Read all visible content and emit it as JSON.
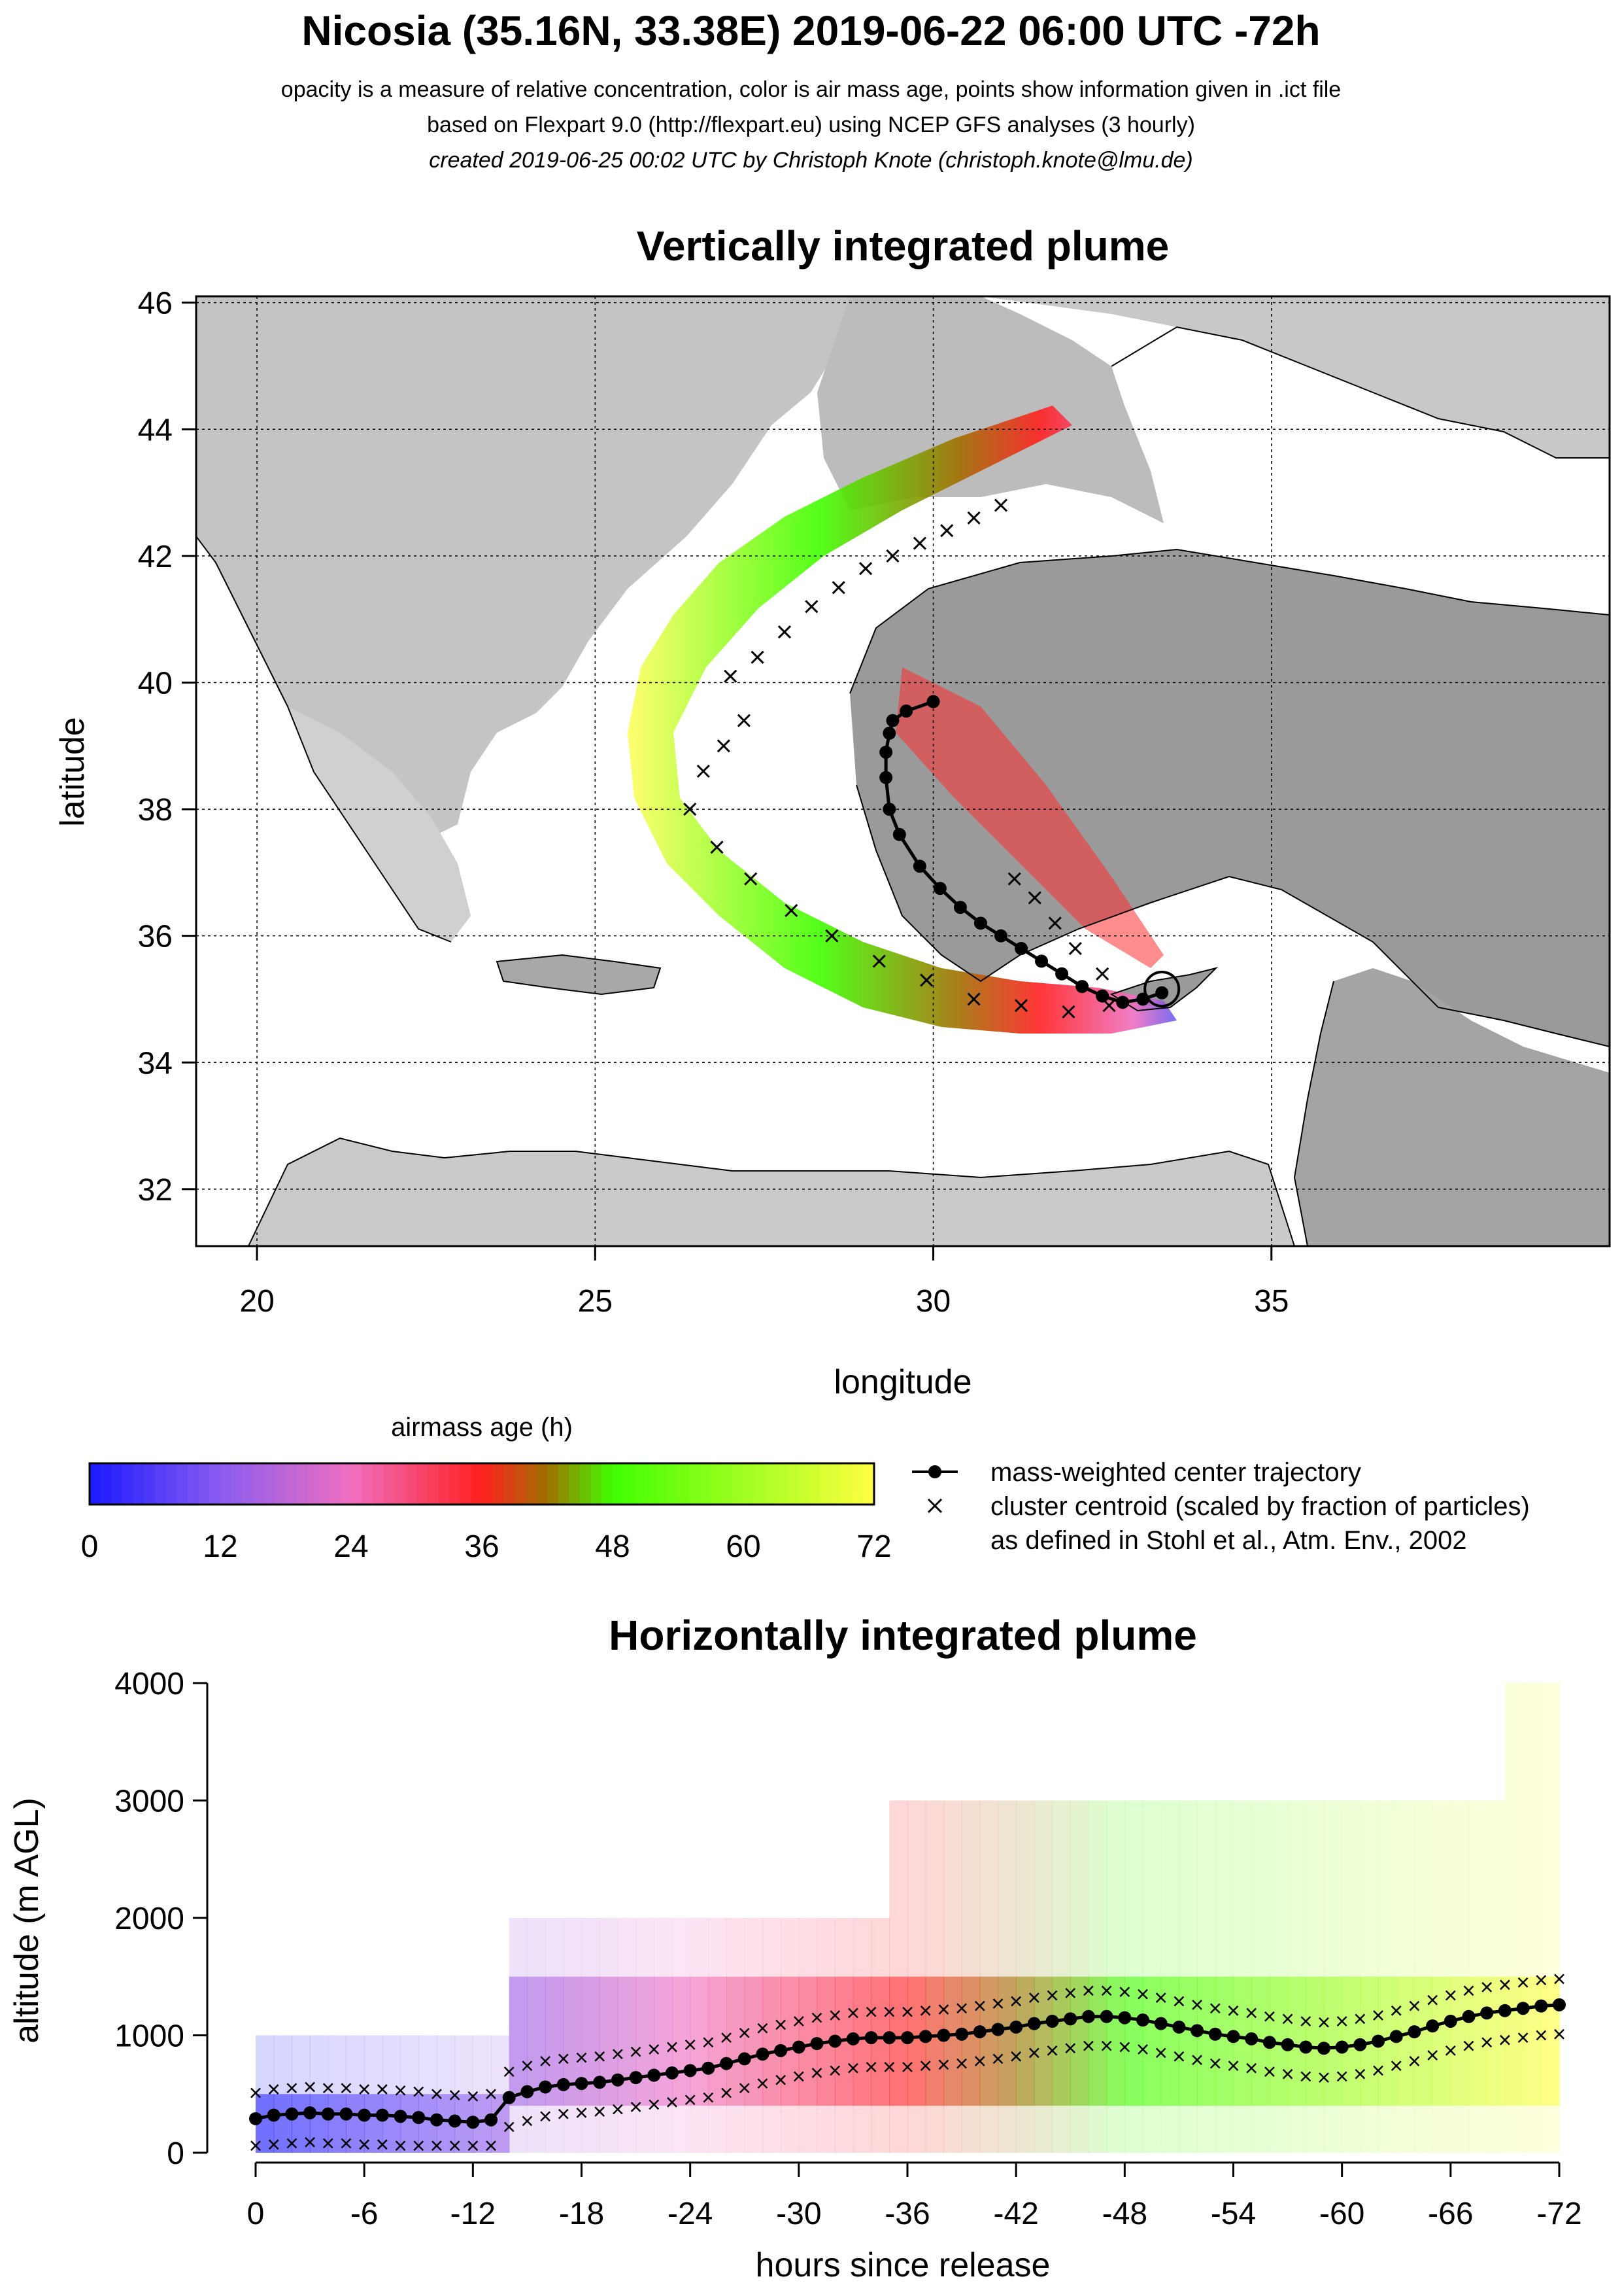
{
  "header": {
    "title": "Nicosia (35.16N, 33.38E) 2019-06-22 06:00 UTC -72h",
    "line1": "opacity is a measure of relative concentration, color is air mass age, points show information given in .ict file",
    "line2": "based on Flexpart 9.0 (http://flexpart.eu) using NCEP GFS analyses (3 hourly)",
    "line3": "created 2019-06-25 00:02 UTC by Christoph Knote (christoph.knote@lmu.de)"
  },
  "colors": {
    "age0": "#1a1aff",
    "age12": "#8a5cf0",
    "age24": "#f06fc0",
    "age36": "#ff2020",
    "age42": "#a07000",
    "age48": "#40ff00",
    "age72": "#ffff40",
    "background_gray": "#b0b0b0",
    "land_light": "#e8e8e8"
  },
  "legend": {
    "colorbar_title": "airmass age (h)",
    "colorbar_ticks": [
      "0",
      "12",
      "24",
      "36",
      "48",
      "60",
      "72"
    ],
    "trajectory_label": "mass-weighted center trajectory",
    "centroid_label_1": "cluster centroid (scaled by fraction of particles)",
    "centroid_label_2": "as defined in Stohl et al., Atm. Env., 2002"
  },
  "chart_data": [
    {
      "type": "scatter",
      "title": "Vertically integrated plume",
      "xlabel": "longitude",
      "ylabel": "latitude",
      "xlim": [
        19.1,
        40.0
      ],
      "ylim": [
        31.1,
        46.1
      ],
      "x_ticks": [
        "20",
        "25",
        "30",
        "35"
      ],
      "y_ticks": [
        "32",
        "34",
        "36",
        "38",
        "40",
        "42",
        "44",
        "46"
      ],
      "grid": true,
      "release_point": {
        "lon": 33.38,
        "lat": 35.16
      },
      "series": [
        {
          "name": "mass-weighted center trajectory",
          "lon": [
            33.38,
            33.1,
            32.8,
            32.5,
            32.2,
            31.9,
            31.6,
            31.3,
            31.0,
            30.7,
            30.4,
            30.1,
            29.8,
            29.5,
            29.35,
            29.3,
            29.3,
            29.35,
            29.4,
            29.6,
            30.0
          ],
          "lat": [
            35.1,
            35.0,
            34.95,
            35.05,
            35.2,
            35.4,
            35.6,
            35.8,
            36.0,
            36.2,
            36.45,
            36.75,
            37.1,
            37.6,
            38.0,
            38.5,
            38.9,
            39.2,
            39.4,
            39.55,
            39.7
          ]
        },
        {
          "name": "cluster centroid",
          "lon": [
            27.0,
            27.4,
            27.8,
            28.2,
            28.6,
            29.0,
            29.4,
            29.8,
            30.2,
            30.6,
            31.0,
            26.6,
            26.9,
            27.2,
            26.4,
            26.8,
            27.3,
            27.9,
            28.5,
            29.2,
            29.9,
            30.6,
            31.3,
            32.0,
            32.6,
            31.2,
            31.5,
            31.8,
            32.1,
            32.5
          ],
          "lat": [
            40.1,
            40.4,
            40.8,
            41.2,
            41.5,
            41.8,
            42.0,
            42.2,
            42.4,
            42.6,
            42.8,
            38.6,
            39.0,
            39.4,
            38.0,
            37.4,
            36.9,
            36.4,
            36.0,
            35.6,
            35.3,
            35.0,
            34.9,
            34.8,
            34.9,
            36.9,
            36.6,
            36.2,
            35.8,
            35.4
          ]
        }
      ]
    },
    {
      "type": "scatter",
      "title": "Horizontally integrated plume",
      "xlabel": "hours since release",
      "ylabel": "altitude (m AGL)",
      "xlim": [
        0,
        -72
      ],
      "ylim": [
        0,
        4000
      ],
      "x_ticks": [
        "0",
        "-6",
        "-12",
        "-18",
        "-24",
        "-30",
        "-36",
        "-42",
        "-48",
        "-54",
        "-60",
        "-66",
        "-72"
      ],
      "y_ticks": [
        "0",
        "1000",
        "2000",
        "3000",
        "4000"
      ],
      "series": [
        {
          "name": "mass-weighted center trajectory",
          "x": [
            0,
            -1,
            -2,
            -3,
            -4,
            -5,
            -6,
            -7,
            -8,
            -9,
            -10,
            -11,
            -12,
            -13,
            -14,
            -15,
            -16,
            -17,
            -18,
            -19,
            -20,
            -21,
            -22,
            -23,
            -24,
            -25,
            -26,
            -27,
            -28,
            -29,
            -30,
            -31,
            -32,
            -33,
            -34,
            -35,
            -36,
            -37,
            -38,
            -39,
            -40,
            -41,
            -42,
            -43,
            -44,
            -45,
            -46,
            -47,
            -48,
            -49,
            -50,
            -51,
            -52,
            -53,
            -54,
            -55,
            -56,
            -57,
            -58,
            -59,
            -60,
            -61,
            -62,
            -63,
            -64,
            -65,
            -66,
            -67,
            -68,
            -69,
            -70,
            -71,
            -72
          ],
          "y": [
            290,
            320,
            330,
            340,
            330,
            330,
            320,
            320,
            310,
            300,
            280,
            270,
            260,
            280,
            470,
            520,
            560,
            580,
            590,
            600,
            620,
            640,
            660,
            680,
            700,
            720,
            760,
            800,
            840,
            870,
            900,
            930,
            950,
            970,
            980,
            980,
            980,
            990,
            1000,
            1010,
            1030,
            1050,
            1070,
            1100,
            1120,
            1140,
            1160,
            1160,
            1150,
            1130,
            1100,
            1070,
            1040,
            1010,
            990,
            970,
            940,
            920,
            900,
            890,
            900,
            920,
            950,
            990,
            1030,
            1080,
            1120,
            1160,
            1190,
            1210,
            1230,
            1250,
            1260
          ]
        }
      ]
    }
  ]
}
